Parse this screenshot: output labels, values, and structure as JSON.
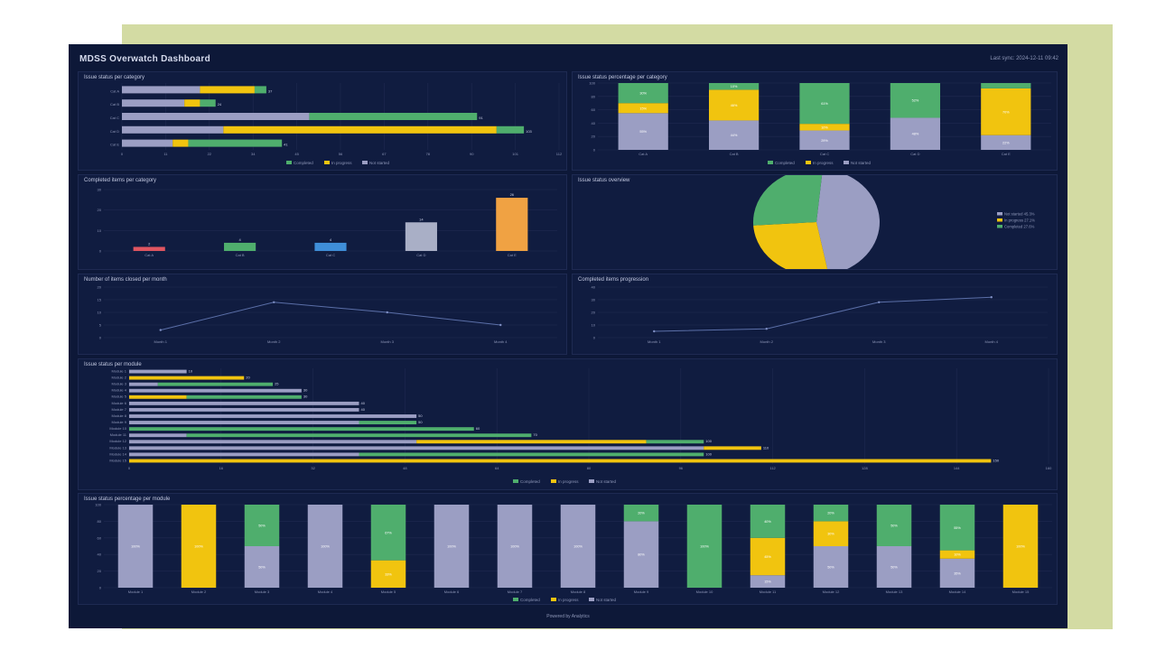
{
  "dashboard": {
    "title": "MDSS Overwatch Dashboard",
    "meta": "Last sync: 2024-12-11 09:42",
    "footer": "Powered by Analytics"
  },
  "colors": {
    "completed": "#4fae6d",
    "in_progress": "#f1c40f",
    "not_started": "#9b9ec3",
    "grid": "#1f2a50",
    "text": "#8e97b8"
  },
  "legend": {
    "completed": "Completed",
    "in_progress": "In progress",
    "not_started": "Not started"
  },
  "panels": {
    "p1": "Issue status per category",
    "p2": "Issue status percentage per category",
    "p3": "Completed items per category",
    "p4": "Issue status overview",
    "p5": "Number of items closed per month",
    "p6": "Completed items progression",
    "p7": "Issue status per module",
    "p8": "Issue status percentage per module"
  },
  "chart_data": [
    {
      "id": "p1",
      "type": "bar",
      "orientation": "horizontal",
      "stacked": true,
      "categories": [
        "Cat A",
        "Cat B",
        "Cat C",
        "Cat D",
        "Cat E"
      ],
      "series": [
        {
          "name": "Not started",
          "values": [
            20,
            16,
            48,
            26,
            13
          ]
        },
        {
          "name": "In progress",
          "values": [
            14,
            4,
            0,
            70,
            4
          ]
        },
        {
          "name": "Completed",
          "values": [
            3,
            4,
            43,
            7,
            24
          ]
        }
      ],
      "xlim": [
        0,
        112
      ],
      "legend": "bottom",
      "grid": true
    },
    {
      "id": "p2",
      "type": "bar",
      "stacked": true,
      "categories": [
        "Cat A",
        "Cat B",
        "Cat C",
        "Cat D",
        "Cat E"
      ],
      "series": [
        {
          "name": "Not started",
          "values": [
            55,
            44,
            29,
            48,
            22
          ]
        },
        {
          "name": "In progress",
          "values": [
            15,
            46,
            10,
            0,
            70
          ]
        },
        {
          "name": "Completed",
          "values": [
            30,
            10,
            61,
            52,
            8
          ]
        }
      ],
      "ylim": [
        0,
        100
      ],
      "legend": "bottom",
      "grid": true
    },
    {
      "id": "p3",
      "type": "bar",
      "categories": [
        "Cat A",
        "Cat B",
        "Cat C",
        "Cat D",
        "Cat E"
      ],
      "values": [
        2,
        4,
        4,
        14,
        26
      ],
      "colors": [
        "#e05561",
        "#4fae6d",
        "#3f8ed8",
        "#a9afc6",
        "#f0a243"
      ],
      "ylim": [
        0,
        30
      ],
      "grid": true
    },
    {
      "id": "p4",
      "type": "pie",
      "categories": [
        "Not started",
        "In progress",
        "Completed"
      ],
      "values": [
        45.3,
        27.1,
        27.6
      ],
      "legend": "right"
    },
    {
      "id": "p5",
      "type": "line",
      "categories": [
        "Month 1",
        "Month 2",
        "Month 3",
        "Month 4"
      ],
      "values": [
        3,
        14,
        10,
        5
      ],
      "ylim": [
        0,
        20
      ],
      "grid": true
    },
    {
      "id": "p6",
      "type": "line",
      "categories": [
        "Month 1",
        "Month 2",
        "Month 3",
        "Month 4"
      ],
      "values": [
        5,
        7,
        28,
        32
      ],
      "ylim": [
        0,
        40
      ],
      "grid": true
    },
    {
      "id": "p7",
      "type": "bar",
      "orientation": "horizontal",
      "stacked": true,
      "categories": [
        "Module 1",
        "Module 2",
        "Module 3",
        "Module 4",
        "Module 5",
        "Module 6",
        "Module 7",
        "Module 8",
        "Module 9",
        "Module 10",
        "Module 11",
        "Module 12",
        "Module 13",
        "Module 14",
        "Module 15"
      ],
      "series": [
        {
          "name": "Not started",
          "values": [
            10,
            0,
            5,
            30,
            0,
            40,
            40,
            50,
            40,
            0,
            10,
            50,
            100,
            40,
            0
          ]
        },
        {
          "name": "In progress",
          "values": [
            0,
            20,
            0,
            0,
            10,
            0,
            0,
            0,
            0,
            0,
            0,
            40,
            10,
            0,
            150
          ]
        },
        {
          "name": "Completed",
          "values": [
            0,
            0,
            20,
            0,
            20,
            0,
            0,
            0,
            10,
            60,
            60,
            10,
            0,
            60,
            0
          ]
        }
      ],
      "xlim": [
        0,
        160
      ],
      "legend": "bottom",
      "grid": true
    },
    {
      "id": "p8",
      "type": "bar",
      "stacked": true,
      "categories": [
        "Module 1",
        "Module 2",
        "Module 3",
        "Module 4",
        "Module 5",
        "Module 6",
        "Module 7",
        "Module 8",
        "Module 9",
        "Module 10",
        "Module 11",
        "Module 12",
        "Module 13",
        "Module 14",
        "Module 15"
      ],
      "series": [
        {
          "name": "Not started",
          "values": [
            100,
            0,
            50,
            100,
            0,
            100,
            100,
            100,
            80,
            0,
            15,
            50,
            50,
            35,
            0
          ]
        },
        {
          "name": "In progress",
          "values": [
            0,
            100,
            0,
            0,
            33,
            0,
            0,
            0,
            0,
            0,
            45,
            30,
            0,
            10,
            100
          ]
        },
        {
          "name": "Completed",
          "values": [
            0,
            0,
            50,
            0,
            67,
            0,
            0,
            0,
            20,
            100,
            40,
            20,
            50,
            55,
            0
          ]
        }
      ],
      "ylim": [
        0,
        100
      ],
      "legend": "bottom",
      "grid": true
    }
  ]
}
